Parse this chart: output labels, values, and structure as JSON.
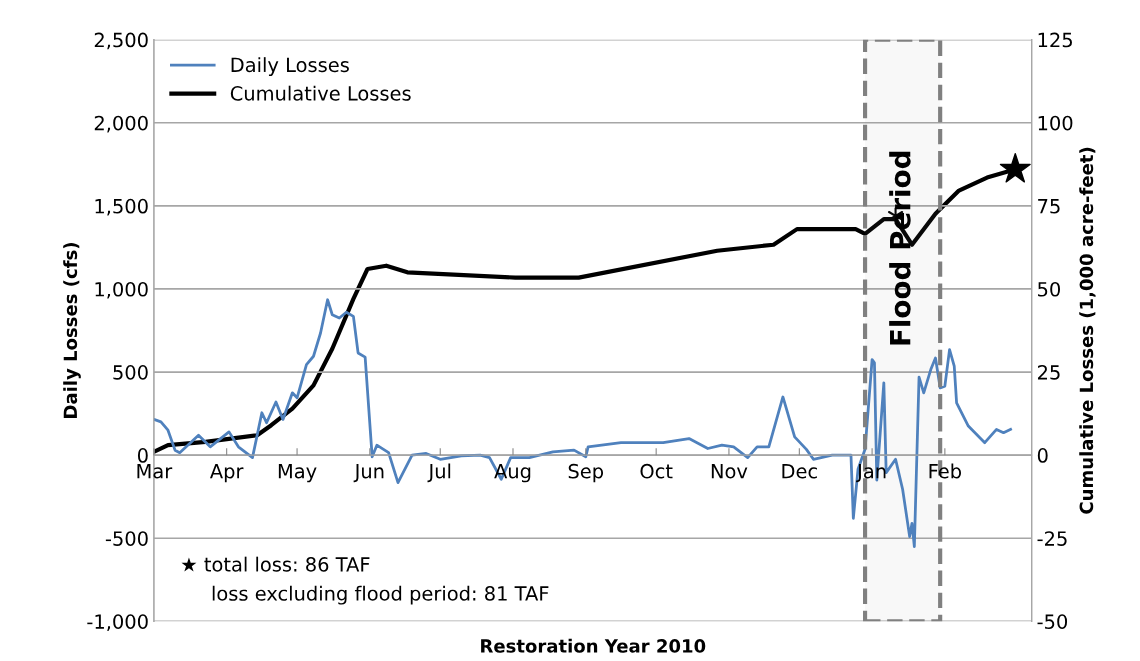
{
  "chart_data": {
    "type": "line",
    "xlabel": "Restoration Year 2010",
    "ylabel": "Daily Losses (cfs)",
    "y2label": "Cumulative Losses (1,000 acre-feet)",
    "xlim": [
      "2010-03-01",
      "2011-03-10"
    ],
    "xticks": [
      {
        "value": "2010-03-01",
        "label": "Mar"
      },
      {
        "value": "2010-04-01",
        "label": "Apr"
      },
      {
        "value": "2010-05-01",
        "label": "May"
      },
      {
        "value": "2010-06-01",
        "label": "Jun"
      },
      {
        "value": "2010-07-01",
        "label": "Jul"
      },
      {
        "value": "2010-08-01",
        "label": "Aug"
      },
      {
        "value": "2010-09-01",
        "label": "Sep"
      },
      {
        "value": "2010-10-01",
        "label": "Oct"
      },
      {
        "value": "2010-11-01",
        "label": "Nov"
      },
      {
        "value": "2010-12-01",
        "label": "Dec"
      },
      {
        "value": "2011-01-01",
        "label": "Jan"
      },
      {
        "value": "2011-02-01",
        "label": "Feb"
      }
    ],
    "ylim": [
      -1000,
      2500
    ],
    "yticks": [
      {
        "value": -1000,
        "label": "-1,000"
      },
      -500,
      0,
      500,
      {
        "value": 1000,
        "label": "1,000"
      },
      {
        "value": 1500,
        "label": "1,500"
      },
      {
        "value": 2000,
        "label": "2,000"
      },
      {
        "value": 2500,
        "label": "2,500"
      }
    ],
    "y2lim": [
      -50,
      125
    ],
    "y2ticks": [
      -50,
      -25,
      0,
      25,
      50,
      75,
      100,
      125
    ],
    "grid": "y",
    "legend": "top left",
    "marker": "none",
    "line_style": "solid",
    "series": [
      {
        "name": "Daily Losses",
        "color": "#4f81bd",
        "x": [
          "2010-03-01",
          "2010-03-04",
          "2010-03-07",
          "2010-03-10",
          "2010-03-12",
          "2010-03-20",
          "2010-03-25",
          "2010-04-02",
          "2010-04-06",
          "2010-04-12",
          "2010-04-16",
          "2010-04-18",
          "2010-04-22",
          "2010-04-25",
          "2010-04-29",
          "2010-05-01",
          "2010-05-05",
          "2010-05-08",
          "2010-05-11",
          "2010-05-14",
          "2010-05-16",
          "2010-05-19",
          "2010-05-22",
          "2010-05-25",
          "2010-05-27",
          "2010-05-30",
          "2010-06-02",
          "2010-06-04",
          "2010-06-09",
          "2010-06-13",
          "2010-06-19",
          "2010-06-25",
          "2010-07-01",
          "2010-07-10",
          "2010-07-18",
          "2010-07-22",
          "2010-07-27",
          "2010-07-31",
          "2010-08-08",
          "2010-08-18",
          "2010-08-27",
          "2010-09-01",
          "2010-09-02",
          "2010-09-16",
          "2010-10-04",
          "2010-10-15",
          "2010-10-23",
          "2010-10-29",
          "2010-11-03",
          "2010-11-09",
          "2010-11-13",
          "2010-11-18",
          "2010-11-24",
          "2010-11-29",
          "2010-12-04",
          "2010-12-07",
          "2010-12-15",
          "2010-12-23",
          "2010-12-24",
          "2010-12-26",
          "2010-12-29",
          "2011-01-01",
          "2011-01-02",
          "2011-01-03",
          "2011-01-06",
          "2011-01-07",
          "2011-01-11",
          "2011-01-14",
          "2011-01-17",
          "2011-01-18",
          "2011-01-19",
          "2011-01-21",
          "2011-01-23",
          "2011-01-26",
          "2011-01-28",
          "2011-01-30",
          "2011-02-01",
          "2011-02-03",
          "2011-02-05",
          "2011-02-06",
          "2011-02-11",
          "2011-02-18",
          "2011-02-23",
          "2011-02-26",
          "2011-03-01"
        ],
        "values": [
          215,
          200,
          150,
          30,
          15,
          120,
          50,
          140,
          50,
          -15,
          255,
          195,
          320,
          215,
          375,
          345,
          545,
          595,
          735,
          935,
          845,
          825,
          860,
          835,
          615,
          590,
          -10,
          60,
          15,
          -165,
          0,
          10,
          -25,
          -5,
          0,
          -15,
          -145,
          -15,
          -15,
          20,
          30,
          -10,
          50,
          75,
          75,
          100,
          40,
          60,
          50,
          -15,
          50,
          50,
          350,
          110,
          35,
          -25,
          0,
          0,
          -380,
          -85,
          35,
          575,
          555,
          -150,
          435,
          -105,
          -25,
          -205,
          -490,
          -410,
          -550,
          470,
          375,
          515,
          585,
          405,
          415,
          635,
          535,
          315,
          175,
          75,
          155,
          135,
          155
        ]
      },
      {
        "name": "Cumulative Losses",
        "color": "#000000",
        "axis": "y2",
        "x": [
          "2010-03-01",
          "2010-03-07",
          "2010-03-23",
          "2010-04-14",
          "2010-04-20",
          "2010-04-29",
          "2010-05-08",
          "2010-05-16",
          "2010-05-25",
          "2010-05-31",
          "2010-06-08",
          "2010-06-17",
          "2010-08-02",
          "2010-08-29",
          "2010-10-27",
          "2010-11-20",
          "2010-11-30",
          "2010-12-25",
          "2010-12-29",
          "2011-01-06",
          "2011-01-11",
          "2011-01-18",
          "2011-01-28",
          "2011-02-07",
          "2011-02-19",
          "2011-03-03"
        ],
        "values": [
          1,
          3,
          4,
          6,
          9,
          14,
          21,
          32,
          47,
          56,
          57,
          55,
          53.4,
          53.4,
          61.5,
          63.3,
          68,
          68,
          66.6,
          71,
          71,
          63.3,
          72.6,
          79.6,
          83.5,
          86
        ]
      },
      {
        "type": "scatter",
        "marker": "star",
        "color": "#000000",
        "axis": "y2",
        "x": [
          "2011-03-03"
        ],
        "values": [
          86
        ]
      },
      {
        "type": "scatter",
        "marker": "cross",
        "color": "#000000",
        "axis": "y2",
        "x": [
          "2011-01-11"
        ],
        "values": [
          72
        ]
      }
    ],
    "bands": [
      {
        "axis": "x",
        "from": "2010-12-29",
        "to": "2011-01-30",
        "label": "Flood Period",
        "color": "#808080"
      }
    ],
    "annotations": [
      "★ total loss: 86 TAF",
      "loss excluding flood period: 81 TAF"
    ]
  }
}
